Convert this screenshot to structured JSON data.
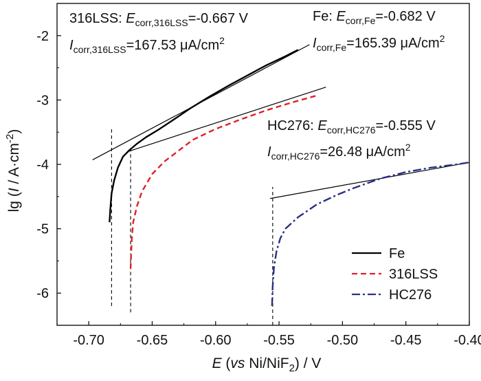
{
  "chart_data": {
    "type": "line",
    "xlim": [
      -0.725,
      -0.4
    ],
    "ylim": [
      -6.5,
      -1.5
    ],
    "x_ticks": [
      -0.7,
      -0.65,
      -0.6,
      -0.55,
      -0.5,
      -0.45,
      -0.4
    ],
    "x_tick_labels": [
      "-0.70",
      "-0.65",
      "-0.60",
      "-0.55",
      "-0.50",
      "-0.45",
      "-0.40"
    ],
    "y_ticks": [
      -6,
      -5,
      -4,
      -3,
      -2
    ],
    "y_tick_labels": [
      "-6",
      "-5",
      "-4",
      "-3",
      "-2"
    ],
    "xlabel": {
      "e": "E",
      "open": " (",
      "vs": "vs",
      "ref": " Ni/NiF",
      "sub": "2",
      "close": ") / V"
    },
    "ylabel": {
      "pre": "lg (",
      "i": "I",
      "mid": " / A·cm",
      "sup": "-2",
      "close": ")"
    },
    "grid": false,
    "legend_position": "bottom-right",
    "series": [
      {
        "name": "Fe",
        "color": "#000000",
        "dash": "solid",
        "points": [
          [
            -0.6836,
            -4.9
          ],
          [
            -0.683,
            -4.7
          ],
          [
            -0.682,
            -4.45
          ],
          [
            -0.68,
            -4.25
          ],
          [
            -0.677,
            -4.05
          ],
          [
            -0.673,
            -3.88
          ],
          [
            -0.668,
            -3.78
          ],
          [
            -0.662,
            -3.68
          ],
          [
            -0.655,
            -3.58
          ],
          [
            -0.645,
            -3.46
          ],
          [
            -0.635,
            -3.33
          ],
          [
            -0.62,
            -3.13
          ],
          [
            -0.605,
            -2.95
          ],
          [
            -0.59,
            -2.78
          ],
          [
            -0.575,
            -2.62
          ],
          [
            -0.56,
            -2.46
          ],
          [
            -0.545,
            -2.32
          ],
          [
            -0.535,
            -2.22
          ]
        ]
      },
      {
        "name": "316LSS",
        "color": "#e0202a",
        "dash": "8,5",
        "points": [
          [
            -0.667,
            -5.62
          ],
          [
            -0.6666,
            -5.4
          ],
          [
            -0.666,
            -5.15
          ],
          [
            -0.665,
            -4.9
          ],
          [
            -0.662,
            -4.65
          ],
          [
            -0.658,
            -4.42
          ],
          [
            -0.65,
            -4.15
          ],
          [
            -0.64,
            -3.95
          ],
          [
            -0.63,
            -3.8
          ],
          [
            -0.618,
            -3.62
          ],
          [
            -0.6,
            -3.45
          ],
          [
            -0.58,
            -3.3
          ],
          [
            -0.56,
            -3.16
          ],
          [
            -0.54,
            -3.04
          ],
          [
            -0.52,
            -2.93
          ]
        ]
      },
      {
        "name": "HC276",
        "color": "#2a2f86",
        "dash": "12,4,3,4",
        "points": [
          [
            -0.5555,
            -6.2
          ],
          [
            -0.555,
            -5.9
          ],
          [
            -0.554,
            -5.6
          ],
          [
            -0.552,
            -5.35
          ],
          [
            -0.549,
            -5.15
          ],
          [
            -0.545,
            -5.0
          ],
          [
            -0.535,
            -4.82
          ],
          [
            -0.52,
            -4.62
          ],
          [
            -0.505,
            -4.48
          ],
          [
            -0.49,
            -4.36
          ],
          [
            -0.47,
            -4.22
          ],
          [
            -0.45,
            -4.12
          ],
          [
            -0.43,
            -4.05
          ],
          [
            -0.41,
            -4.0
          ],
          [
            -0.4,
            -3.97
          ]
        ]
      }
    ],
    "tafel_lines": [
      {
        "of": "Fe",
        "from": [
          -0.697,
          -3.93
        ],
        "to": [
          -0.526,
          -2.14
        ]
      },
      {
        "of": "316LSS",
        "from": [
          -0.669,
          -3.8
        ],
        "to": [
          -0.513,
          -2.8
        ]
      },
      {
        "of": "HC276",
        "from": [
          -0.557,
          -4.53
        ],
        "to": [
          -0.4,
          -3.97
        ]
      }
    ],
    "corrosion_potential_markers": [
      {
        "of": "Fe",
        "x": -0.682,
        "y_from": -6.2,
        "y_to": -3.45
      },
      {
        "of": "316LSS",
        "x": -0.667,
        "y_from": -6.3,
        "y_to": -3.7
      },
      {
        "of": "HC276",
        "x": -0.555,
        "y_from": -6.5,
        "y_to": -4.35
      }
    ],
    "annotations": [
      {
        "material": "316LSS",
        "e_label": "316LSS: ",
        "e_sym": "E",
        "e_sub": "corr,316LSS",
        "e_value": "=-0.667 V",
        "i_sym": "I",
        "i_sub": "corr,316LSS",
        "i_value": "=167.53 μA/cm",
        "i_unit_sup": "2"
      },
      {
        "material": "Fe",
        "e_label": "Fe: ",
        "e_sym": "E",
        "e_sub": "corr,Fe",
        "e_value": "=-0.682 V",
        "i_sym": "I",
        "i_sub": "corr,Fe",
        "i_value": "=165.39 μA/cm",
        "i_unit_sup": "2"
      },
      {
        "material": "HC276",
        "e_label": "HC276: ",
        "e_sym": "E",
        "e_sub": "corr,HC276",
        "e_value": "=-0.555 V",
        "i_sym": "I",
        "i_sub": "corr,HC276",
        "i_value": "=26.48 μA/cm",
        "i_unit_sup": "2"
      }
    ]
  }
}
